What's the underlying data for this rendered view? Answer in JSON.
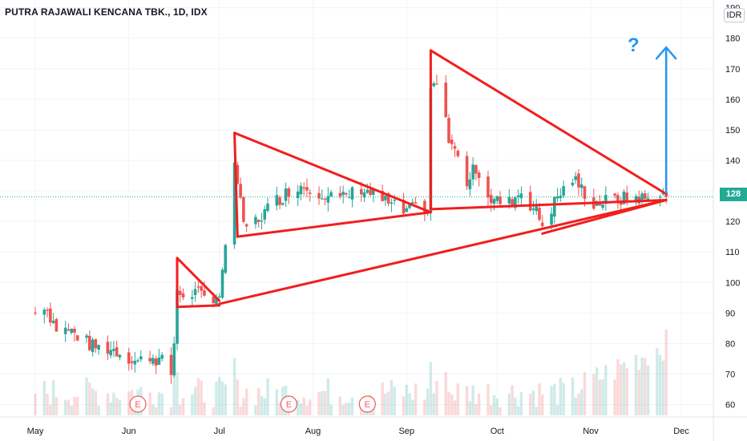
{
  "header": {
    "title": "PUTRA RAJAWALI KENCANA TBK., 1D, IDX",
    "currency": "IDR"
  },
  "last_price": {
    "label": "128",
    "value": 128
  },
  "annotation": {
    "question_mark": "?"
  },
  "earnings_marker": "E",
  "colors": {
    "up": "#26a69a",
    "down": "#ef5350",
    "pattern": "#f21e1e",
    "arrow": "#2196f3",
    "grid": "#f0f3fa",
    "axis_text": "#131722"
  },
  "chart_data": {
    "type": "candlestick",
    "title": "PUTRA RAJAWALI KENCANA TBK., 1D, IDX",
    "x_ticks": [
      "May",
      "Jun",
      "Jul",
      "Aug",
      "Sep",
      "Oct",
      "Nov",
      "Dec"
    ],
    "y_ticks": [
      60,
      70,
      80,
      90,
      100,
      110,
      120,
      130,
      140,
      150,
      160,
      170,
      180,
      190
    ],
    "ylim": [
      57,
      192
    ],
    "grid": true,
    "current_price": 128,
    "price_path": [
      [
        "2020-05-01",
        90
      ],
      [
        "2020-05-04",
        93
      ],
      [
        "2020-05-08",
        85
      ],
      [
        "2020-05-13",
        84
      ],
      [
        "2020-05-20",
        79
      ],
      [
        "2020-05-27",
        78
      ],
      [
        "2020-06-04",
        74
      ],
      [
        "2020-06-08",
        76
      ],
      [
        "2020-06-12",
        74
      ],
      [
        "2020-06-15",
        70
      ],
      [
        "2020-06-16",
        80
      ],
      [
        "2020-06-17",
        96
      ],
      [
        "2020-06-22",
        97
      ],
      [
        "2020-06-26",
        95
      ],
      [
        "2020-07-01",
        96
      ],
      [
        "2020-07-03",
        110
      ],
      [
        "2020-07-06",
        140
      ],
      [
        "2020-07-09",
        118
      ],
      [
        "2020-07-13",
        120
      ],
      [
        "2020-07-20",
        127
      ],
      [
        "2020-07-27",
        132
      ],
      [
        "2020-08-03",
        130
      ],
      [
        "2020-08-10",
        127
      ],
      [
        "2020-08-17",
        131
      ],
      [
        "2020-08-24",
        127
      ],
      [
        "2020-08-31",
        123
      ],
      [
        "2020-09-07",
        125
      ],
      [
        "2020-09-08",
        123
      ],
      [
        "2020-09-09",
        163
      ],
      [
        "2020-09-11",
        165
      ],
      [
        "2020-09-15",
        148
      ],
      [
        "2020-09-21",
        133
      ],
      [
        "2020-09-24",
        138
      ],
      [
        "2020-09-29",
        127
      ],
      [
        "2020-10-05",
        126
      ],
      [
        "2020-10-09",
        130
      ],
      [
        "2020-10-14",
        123
      ],
      [
        "2020-10-16",
        119
      ],
      [
        "2020-10-21",
        128
      ],
      [
        "2020-10-26",
        134
      ],
      [
        "2020-11-02",
        126
      ],
      [
        "2020-11-09",
        127
      ],
      [
        "2020-11-16",
        128
      ],
      [
        "2020-11-20",
        127
      ],
      [
        "2020-11-23",
        129
      ],
      [
        "2020-11-26",
        128
      ]
    ],
    "volume_note": "volume histogram scaled on its own, values not printed",
    "earnings_events": [
      "2020-06-04",
      "2020-07-24",
      "2020-08-19"
    ],
    "drawings": [
      {
        "name": "pennant-jun",
        "points": [
          [
            "2020-06-17",
            108
          ],
          [
            "2020-07-01",
            94
          ],
          [
            "2020-06-17",
            92
          ],
          [
            "2020-07-01",
            92.5
          ]
        ]
      },
      {
        "name": "triangle-jul-sep",
        "points": [
          [
            "2020-07-06",
            149
          ],
          [
            "2020-09-09",
            123
          ],
          [
            "2020-07-07",
            115
          ]
        ]
      },
      {
        "name": "triangle-sep-nov",
        "points": [
          [
            "2020-09-09",
            176
          ],
          [
            "2020-11-26",
            129
          ],
          [
            "2020-09-09",
            124
          ],
          [
            "2020-11-26",
            127
          ]
        ]
      },
      {
        "name": "support-jul-nov",
        "points": [
          [
            "2020-07-01",
            93
          ],
          [
            "2020-11-26",
            127
          ]
        ]
      },
      {
        "name": "support-oct-nov",
        "points": [
          [
            "2020-10-16",
            116
          ],
          [
            "2020-11-26",
            127
          ]
        ]
      },
      {
        "name": "breakout-arrow",
        "points": [
          [
            "2020-11-26",
            129
          ],
          [
            "2020-11-26",
            177
          ]
        ]
      }
    ]
  }
}
